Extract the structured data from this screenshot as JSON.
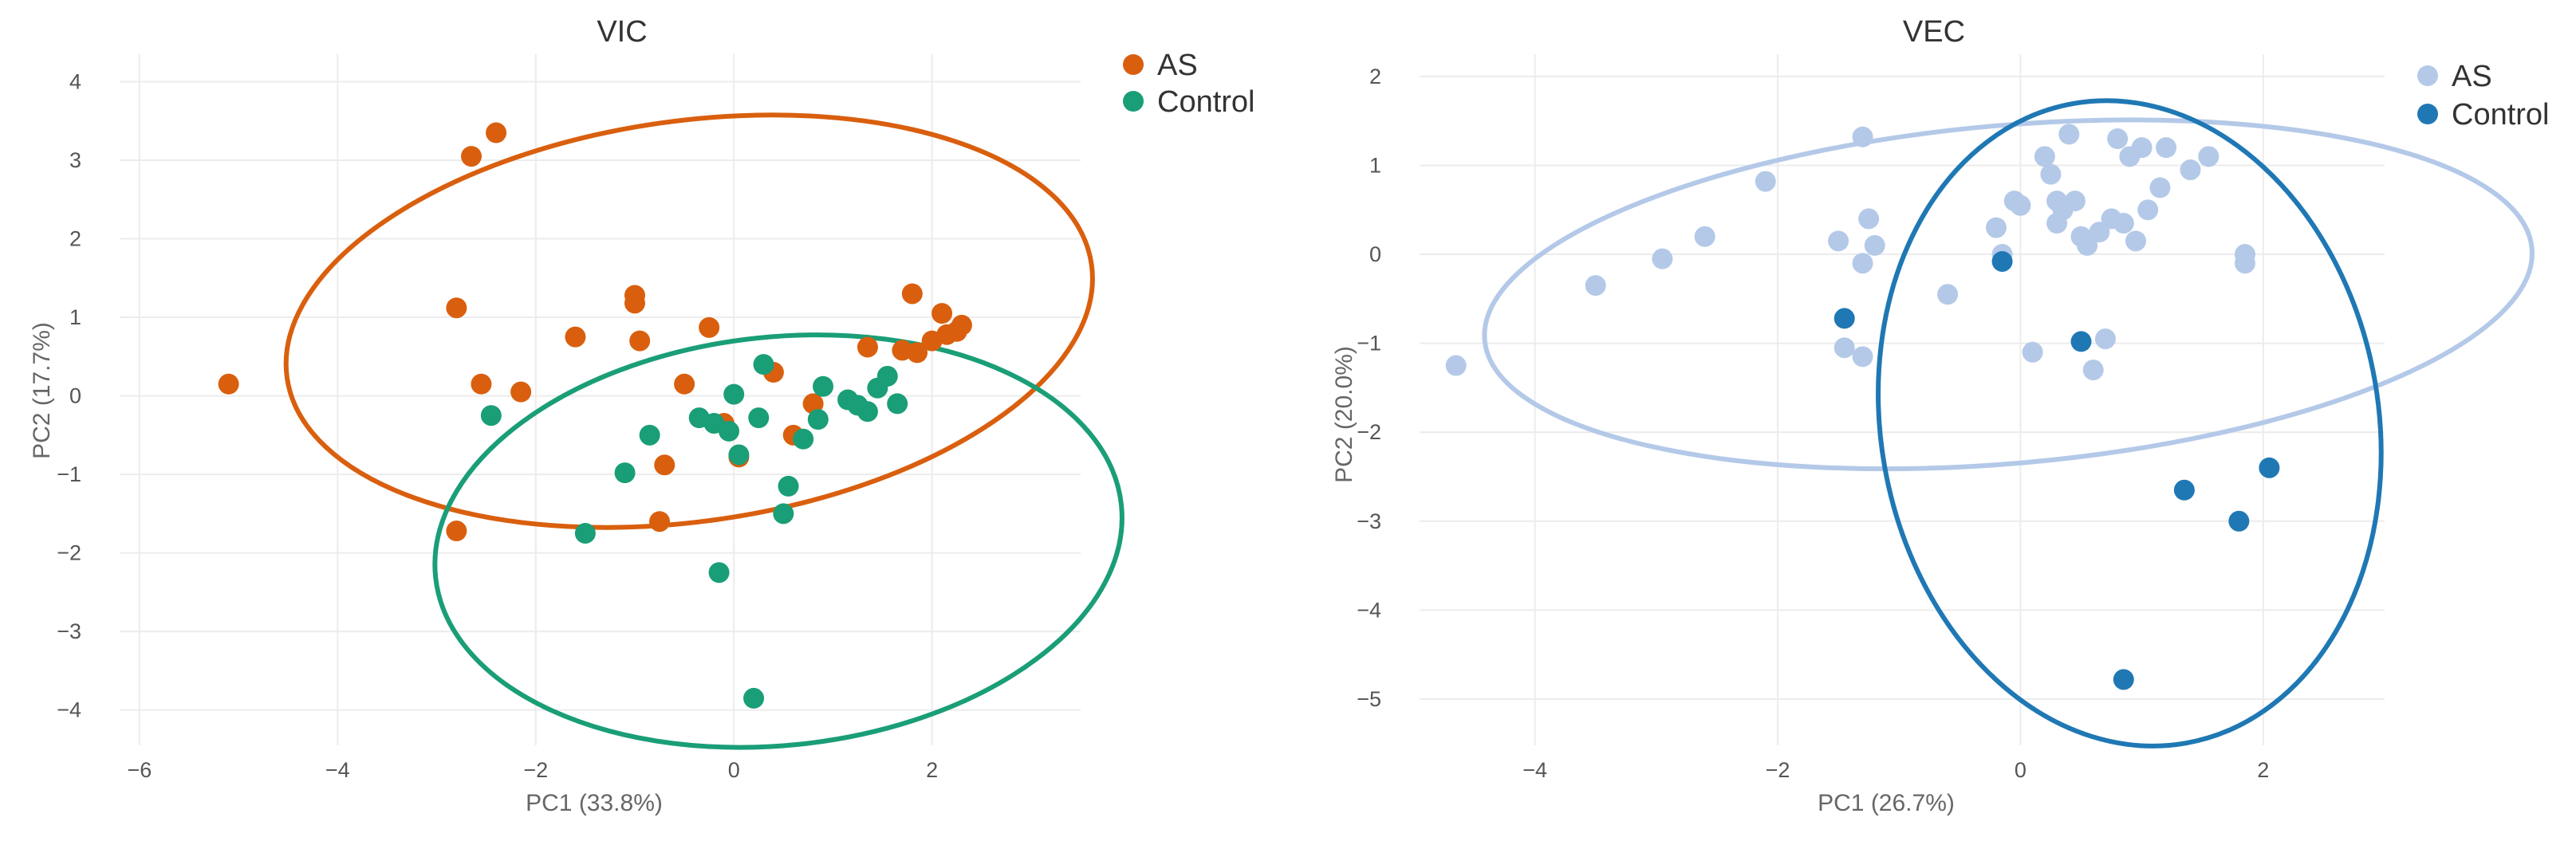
{
  "chart_data": [
    {
      "type": "scatter",
      "title": "VIC",
      "xlabel": "PC1 (33.8%)",
      "ylabel": "PC2 (17.7%)",
      "xlim": [
        -6.2,
        3.5
      ],
      "ylim": [
        -4.45,
        4.35
      ],
      "xticks": [
        -6,
        -4,
        -2,
        0,
        2
      ],
      "yticks": [
        -4,
        -3,
        -2,
        -1,
        0,
        1,
        2,
        3,
        4
      ],
      "tick_labels_x": [
        "−6",
        "−4",
        "−2",
        "0",
        "2"
      ],
      "tick_labels_y": [
        "−4",
        "−3",
        "−2",
        "−1",
        "0",
        "1",
        "2",
        "3",
        "4"
      ],
      "grid": true,
      "legend_position": "top-right-outside",
      "series": [
        {
          "name": "AS",
          "color": "#d95f0e",
          "points": [
            [
              -5.1,
              0.15
            ],
            [
              -2.65,
              3.05
            ],
            [
              -2.4,
              3.35
            ],
            [
              -2.8,
              1.12
            ],
            [
              -2.55,
              0.15
            ],
            [
              -2.15,
              0.05
            ],
            [
              -2.8,
              -1.72
            ],
            [
              -1.6,
              0.75
            ],
            [
              -1.0,
              1.28
            ],
            [
              -1.0,
              1.18
            ],
            [
              -0.95,
              0.7
            ],
            [
              -0.25,
              0.87
            ],
            [
              -0.5,
              0.15
            ],
            [
              -0.1,
              -0.35
            ],
            [
              -0.7,
              -0.88
            ],
            [
              -0.75,
              -1.6
            ],
            [
              0.05,
              -0.78
            ],
            [
              0.4,
              0.3
            ],
            [
              0.6,
              -0.5
            ],
            [
              0.8,
              -0.1
            ],
            [
              1.35,
              0.62
            ],
            [
              1.7,
              0.58
            ],
            [
              1.8,
              1.3
            ],
            [
              1.85,
              0.55
            ],
            [
              2.0,
              0.7
            ],
            [
              2.1,
              1.05
            ],
            [
              2.15,
              0.78
            ],
            [
              2.25,
              0.82
            ],
            [
              2.3,
              0.9
            ]
          ],
          "ellipse": {
            "cx": -0.45,
            "cy": 0.95,
            "rx": 4.1,
            "ry": 2.55,
            "angle_deg": 8
          }
        },
        {
          "name": "Control",
          "color": "#1a9e77",
          "points": [
            [
              -2.45,
              -0.25
            ],
            [
              -1.1,
              -0.98
            ],
            [
              -0.85,
              -0.5
            ],
            [
              -1.5,
              -1.75
            ],
            [
              -0.35,
              -0.28
            ],
            [
              -0.2,
              -0.35
            ],
            [
              0.0,
              0.02
            ],
            [
              -0.05,
              -0.45
            ],
            [
              0.25,
              -0.28
            ],
            [
              0.05,
              -0.75
            ],
            [
              0.3,
              0.4
            ],
            [
              -0.15,
              -2.25
            ],
            [
              0.2,
              -3.85
            ],
            [
              0.5,
              -1.5
            ],
            [
              0.55,
              -1.15
            ],
            [
              0.7,
              -0.55
            ],
            [
              0.85,
              -0.3
            ],
            [
              0.9,
              0.12
            ],
            [
              1.15,
              -0.05
            ],
            [
              1.25,
              -0.12
            ],
            [
              1.35,
              -0.2
            ],
            [
              1.45,
              0.1
            ],
            [
              1.55,
              0.25
            ],
            [
              1.65,
              -0.1
            ]
          ],
          "ellipse": {
            "cx": 0.45,
            "cy": -1.85,
            "rx": 3.48,
            "ry": 2.6,
            "angle_deg": 6
          }
        }
      ]
    },
    {
      "type": "scatter",
      "title": "VEC",
      "xlabel": "PC1 (26.7%)",
      "ylabel": "PC2 (20.0%)",
      "xlim": [
        -4.95,
        3.0
      ],
      "ylim": [
        -5.52,
        2.25
      ],
      "xticks": [
        -4,
        -2,
        0,
        2
      ],
      "yticks": [
        -5,
        -4,
        -3,
        -2,
        -1,
        0,
        1,
        2
      ],
      "tick_labels_x": [
        "−4",
        "−2",
        "0",
        "2"
      ],
      "tick_labels_y": [
        "−5",
        "−4",
        "−3",
        "−2",
        "−1",
        "0",
        "1",
        "2"
      ],
      "grid": true,
      "legend_position": "top-right-outside",
      "series": [
        {
          "name": "AS",
          "color": "#b4c9e8",
          "points": [
            [
              -4.65,
              -1.25
            ],
            [
              -3.5,
              -0.35
            ],
            [
              -2.95,
              -0.05
            ],
            [
              -2.6,
              0.2
            ],
            [
              -2.1,
              0.82
            ],
            [
              -1.5,
              0.15
            ],
            [
              -1.3,
              -0.1
            ],
            [
              -1.25,
              0.4
            ],
            [
              -1.2,
              0.1
            ],
            [
              -1.3,
              1.32
            ],
            [
              -1.45,
              -1.05
            ],
            [
              -1.3,
              -1.15
            ],
            [
              -0.6,
              -0.45
            ],
            [
              -0.2,
              0.3
            ],
            [
              -0.15,
              0.0
            ],
            [
              -0.05,
              0.6
            ],
            [
              0.0,
              0.55
            ],
            [
              0.1,
              -1.1
            ],
            [
              0.2,
              1.1
            ],
            [
              0.25,
              0.9
            ],
            [
              0.3,
              0.6
            ],
            [
              0.35,
              0.5
            ],
            [
              0.4,
              1.35
            ],
            [
              0.45,
              0.6
            ],
            [
              0.5,
              0.2
            ],
            [
              0.55,
              0.1
            ],
            [
              0.6,
              -1.3
            ],
            [
              0.7,
              -0.95
            ],
            [
              0.75,
              0.4
            ],
            [
              0.8,
              1.3
            ],
            [
              0.85,
              0.35
            ],
            [
              0.9,
              1.1
            ],
            [
              0.95,
              0.15
            ],
            [
              1.0,
              1.2
            ],
            [
              1.05,
              0.5
            ],
            [
              1.15,
              0.75
            ],
            [
              1.2,
              1.2
            ],
            [
              1.4,
              0.95
            ],
            [
              1.55,
              1.1
            ],
            [
              1.85,
              0.0
            ],
            [
              1.85,
              -0.1
            ],
            [
              0.65,
              0.25
            ],
            [
              0.3,
              0.35
            ]
          ],
          "ellipse": {
            "cx": -0.1,
            "cy": -0.45,
            "rx": 4.33,
            "ry": 1.9,
            "angle_deg": 5
          }
        },
        {
          "name": "Control",
          "color": "#1f78b4",
          "points": [
            [
              -0.15,
              -0.08
            ],
            [
              -1.45,
              -0.72
            ],
            [
              0.5,
              -0.98
            ],
            [
              1.35,
              -2.65
            ],
            [
              1.8,
              -3.0
            ],
            [
              2.05,
              -2.4
            ],
            [
              0.85,
              -4.78
            ]
          ],
          "ellipse": {
            "cx": 0.9,
            "cy": -1.9,
            "rx": 2.05,
            "ry": 3.65,
            "angle_deg": 10
          }
        }
      ]
    }
  ]
}
